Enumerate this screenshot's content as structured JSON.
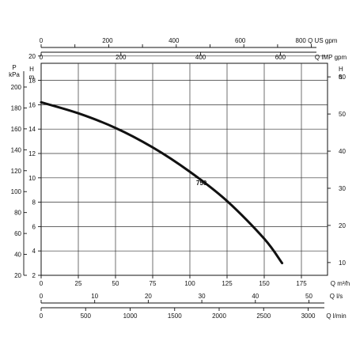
{
  "chart_data": {
    "type": "line",
    "series": [
      {
        "name": "750",
        "points": [
          {
            "q_m3h": 0,
            "h_m": 16.2
          },
          {
            "q_m3h": 25,
            "h_m": 15.3
          },
          {
            "q_m3h": 50,
            "h_m": 14.1
          },
          {
            "q_m3h": 75,
            "h_m": 12.5
          },
          {
            "q_m3h": 100,
            "h_m": 10.5
          },
          {
            "q_m3h": 125,
            "h_m": 8.1
          },
          {
            "q_m3h": 150,
            "h_m": 5.0
          },
          {
            "q_m3h": 162,
            "h_m": 3.0
          }
        ]
      }
    ],
    "x_axes": {
      "m3h": {
        "label": "Q m³/h",
        "range": [
          0,
          175
        ],
        "ticks": [
          "0",
          "25",
          "50",
          "75",
          "100",
          "125",
          "150",
          "175"
        ]
      },
      "us_gpm": {
        "label": "800 Q US gpm",
        "range": [
          0,
          800
        ],
        "ticks": [
          "0",
          "200",
          "400",
          "600"
        ]
      },
      "imp_gpm": {
        "label": "Q IMP gpm",
        "range": [
          0,
          600
        ],
        "ticks": [
          "0",
          "200",
          "400",
          "600"
        ]
      },
      "ls": {
        "label": "Q l/s",
        "range": [
          0,
          50
        ],
        "ticks": [
          "0",
          "10",
          "20",
          "30",
          "40",
          "50"
        ]
      },
      "lmin": {
        "label": "Q l/min",
        "range": [
          0,
          3000
        ],
        "ticks": [
          "0",
          "500",
          "1000",
          "1500",
          "2000",
          "2500",
          "3000"
        ]
      }
    },
    "y_axes": {
      "h_m": {
        "label_top": "H",
        "label_bottom": "m",
        "range": [
          2,
          20
        ],
        "ticks": [
          "2",
          "4",
          "6",
          "8",
          "10",
          "12",
          "14",
          "16",
          "18",
          "20"
        ]
      },
      "p_kpa": {
        "label_top": "P",
        "label_bottom": "kPa",
        "ticks": [
          "20",
          "40",
          "60",
          "80",
          "100",
          "120",
          "140",
          "160",
          "180",
          "200"
        ]
      },
      "h_ft": {
        "label_top": "H",
        "label_bottom": "ft",
        "ticks": [
          "10",
          "20",
          "30",
          "40",
          "50",
          "60"
        ]
      }
    },
    "grid": true,
    "curve_label": "750"
  }
}
